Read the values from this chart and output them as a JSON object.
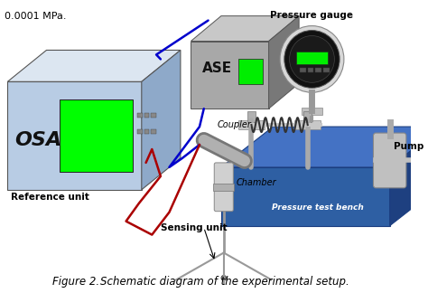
{
  "caption_prefix": "0.0001 MPa.",
  "title": "Figure 2.",
  "subtitle": "Schematic diagram of the experimental setup.",
  "labels": {
    "OSA": "OSA",
    "ASE": "ASE",
    "pressure_gauge": "Pressure gauge",
    "pump": "Pump",
    "coupler": "Coupler",
    "chamber": "Chamber",
    "reference_unit": "Reference unit",
    "sensing_unit": "Sensing unit",
    "pressure_test_bench": "Pressure test bench"
  },
  "colors": {
    "background": "#ffffff",
    "osa_front": "#b8cce4",
    "osa_top": "#dce6f1",
    "osa_right": "#8ea9c9",
    "osa_screen": "#00ff00",
    "ase_front": "#a8a8a8",
    "ase_top": "#c8c8c8",
    "ase_right": "#787878",
    "ase_screen": "#00ee00",
    "bench_top": "#4472c4",
    "bench_front": "#2e5fa3",
    "bench_right": "#1e4080",
    "bench_label": "#ffffff",
    "cable_red": "#aa0000",
    "cable_blue": "#0000cc",
    "coupler_body": "#909090",
    "chamber_body": "#c0c0c0",
    "gauge_outer": "#d0d0d0",
    "gauge_face": "#111111",
    "gauge_display": "#00ee00",
    "pump_body": "#c0c0c0",
    "stand_color": "#b0b0b0",
    "text_color": "#000000",
    "spring_color": "#333333"
  },
  "figure_size": [
    4.74,
    3.24
  ],
  "dpi": 100
}
